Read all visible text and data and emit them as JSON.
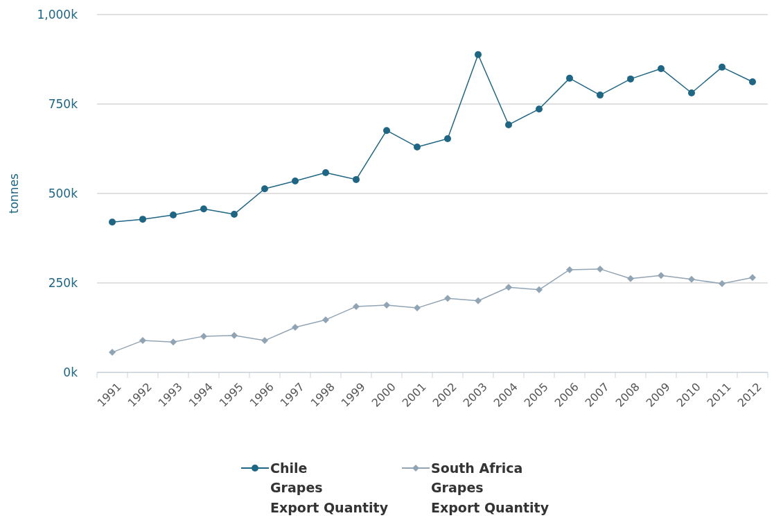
{
  "chart_data": {
    "type": "line",
    "ylabel": "tonnes",
    "categories": [
      "1991",
      "1992",
      "1993",
      "1994",
      "1995",
      "1996",
      "1997",
      "1998",
      "1999",
      "2000",
      "2001",
      "2002",
      "2003",
      "2004",
      "2005",
      "2006",
      "2007",
      "2008",
      "2009",
      "2010",
      "2011",
      "2012"
    ],
    "series": [
      {
        "name": "Chile\nGrapes\nExport Quantity",
        "color": "#1f6584",
        "marker": "circle",
        "values": [
          420,
          428,
          440,
          457,
          442,
          513,
          535,
          558,
          539,
          676,
          630,
          653,
          888,
          692,
          736,
          822,
          775,
          820,
          849,
          781,
          853,
          812
        ]
      },
      {
        "name": "South Africa\nGrapes\nExport Quantity",
        "color": "#91a4b4",
        "marker": "diamond",
        "values": [
          56,
          89,
          85,
          101,
          103,
          89,
          126,
          147,
          184,
          188,
          180,
          207,
          200,
          238,
          231,
          287,
          289,
          262,
          271,
          260,
          248,
          265
        ]
      }
    ],
    "ylim": [
      0,
      1000
    ],
    "yticks": [
      {
        "value": 0,
        "label": "0k"
      },
      {
        "value": 250,
        "label": "250k"
      },
      {
        "value": 500,
        "label": "500k"
      },
      {
        "value": 750,
        "label": "750k"
      },
      {
        "value": 1000,
        "label": "1,000k"
      }
    ],
    "grid": "y",
    "legend": "bottom"
  }
}
